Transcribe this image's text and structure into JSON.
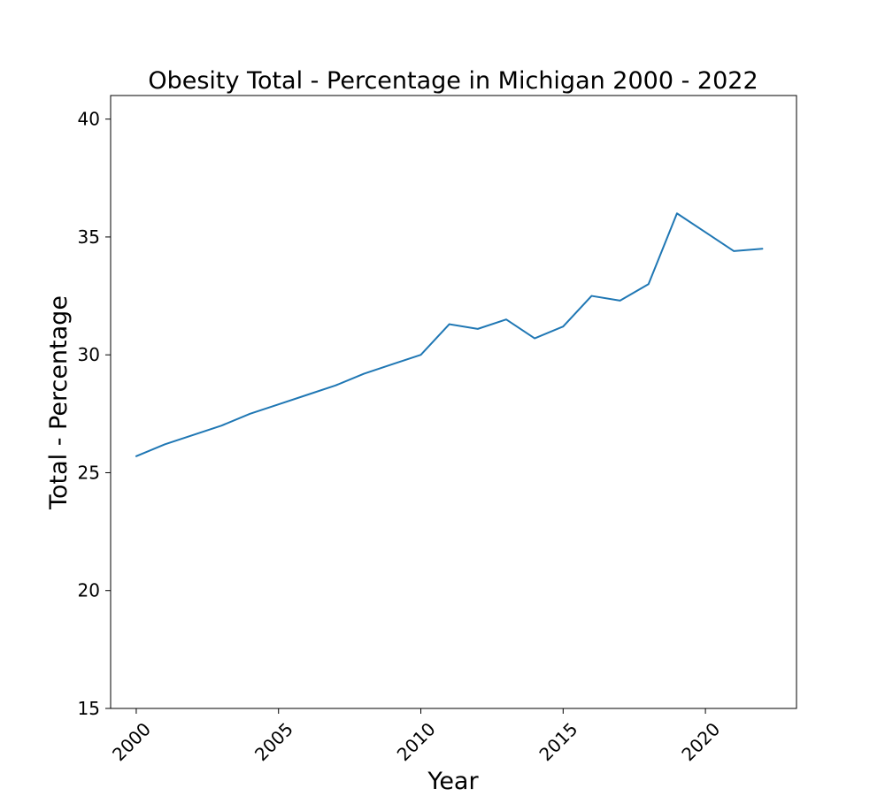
{
  "chart_data": {
    "type": "line",
    "title": "Obesity Total - Percentage in Michigan 2000 - 2022",
    "xlabel": "Year",
    "ylabel": "Total - Percentage",
    "xlim": [
      1999.1,
      2023.2
    ],
    "ylim": [
      15,
      41
    ],
    "grid": false,
    "x_ticks": [
      "2000",
      "2005",
      "2010",
      "2015",
      "2020"
    ],
    "y_ticks": [
      "15",
      "20",
      "25",
      "30",
      "35",
      "40"
    ],
    "series": [
      {
        "color": "#1f77b4",
        "x": [
          2000,
          2001,
          2002,
          2003,
          2004,
          2005,
          2006,
          2007,
          2008,
          2009,
          2010,
          2011,
          2012,
          2013,
          2014,
          2015,
          2016,
          2017,
          2018,
          2019,
          2020,
          2021,
          2022
        ],
        "y": [
          25.7,
          26.2,
          26.6,
          27.0,
          27.5,
          27.9,
          28.3,
          28.7,
          29.2,
          29.6,
          30.0,
          31.3,
          31.1,
          31.5,
          30.7,
          31.2,
          32.5,
          32.3,
          33.0,
          36.0,
          35.2,
          34.4,
          34.5
        ]
      }
    ]
  }
}
